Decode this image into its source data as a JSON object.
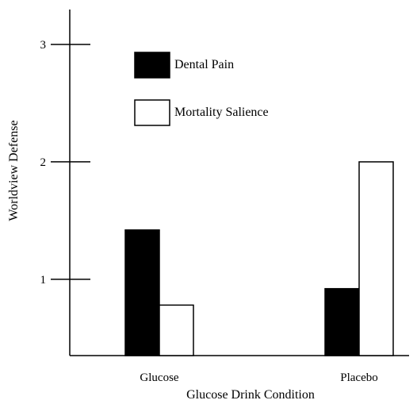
{
  "chart_data": {
    "type": "bar",
    "title": "",
    "xlabel": "Glucose Drink Condition",
    "ylabel": "Worldview Defense",
    "categories": [
      "Glucose",
      "Placebo"
    ],
    "series": [
      {
        "name": "Dental Pain",
        "values": [
          1.42,
          0.92
        ],
        "fill": "#000000"
      },
      {
        "name": "Mortality Salience",
        "values": [
          0.78,
          2.0
        ],
        "fill": "#ffffff"
      }
    ],
    "ylim": [
      0.35,
      3.0
    ],
    "yticks": [
      1,
      2,
      3
    ],
    "grid": false,
    "legend": "top-center"
  }
}
